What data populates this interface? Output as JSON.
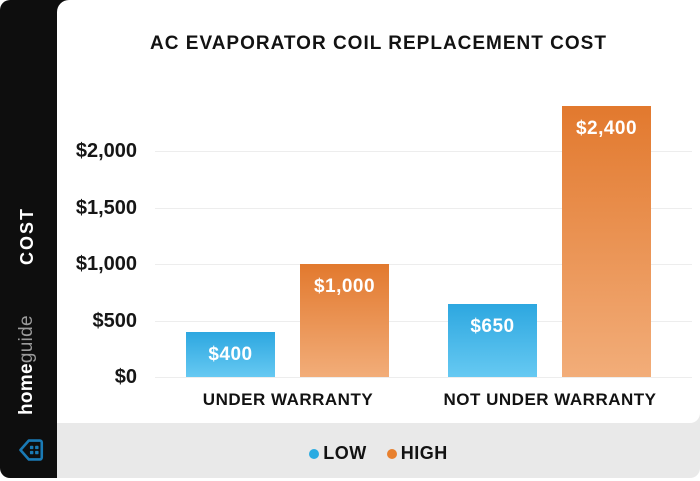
{
  "sidebar": {
    "axis_title": "COST",
    "brand_bold": "home",
    "brand_light": "guide",
    "brand_bold_color": "#ffffff",
    "brand_light_color": "#9b9b9b",
    "logo_color": "#1a7ab5",
    "background": "#0e0e0e"
  },
  "chart": {
    "title": "AC EVAPORATOR COIL REPLACEMENT COST"
  },
  "legend": {
    "items": [
      {
        "label": "LOW",
        "color": "#29abe2"
      },
      {
        "label": "HIGH",
        "color": "#e8802e"
      }
    ]
  },
  "colors": {
    "grid": "#ededed",
    "footer_bg": "#e9e9e9",
    "card_bg": "#ffffff",
    "text": "#121212"
  },
  "chart_data": {
    "type": "bar",
    "title": "AC EVAPORATOR COIL REPLACEMENT COST",
    "categories": [
      "UNDER WARRANTY",
      "NOT UNDER WARRANTY"
    ],
    "series": [
      {
        "name": "LOW",
        "values": [
          400,
          650
        ],
        "labels": [
          "$400",
          "$650"
        ],
        "color_top": "#2da7e0",
        "color_bottom": "#66c9f2"
      },
      {
        "name": "HIGH",
        "values": [
          1000,
          2400
        ],
        "labels": [
          "$1,000",
          "$2,400"
        ],
        "color_top": "#e2792e",
        "color_bottom": "#f2ad79"
      }
    ],
    "y_axis": {
      "label": "COST",
      "ticks": [
        {
          "value": 0,
          "label": "$0"
        },
        {
          "value": 500,
          "label": "$500"
        },
        {
          "value": 1000,
          "label": "$1,000"
        },
        {
          "value": 1500,
          "label": "$1,500"
        },
        {
          "value": 2000,
          "label": "$2,000"
        }
      ],
      "range": [
        0,
        2400
      ],
      "grid": true
    },
    "legend_position": "bottom"
  }
}
